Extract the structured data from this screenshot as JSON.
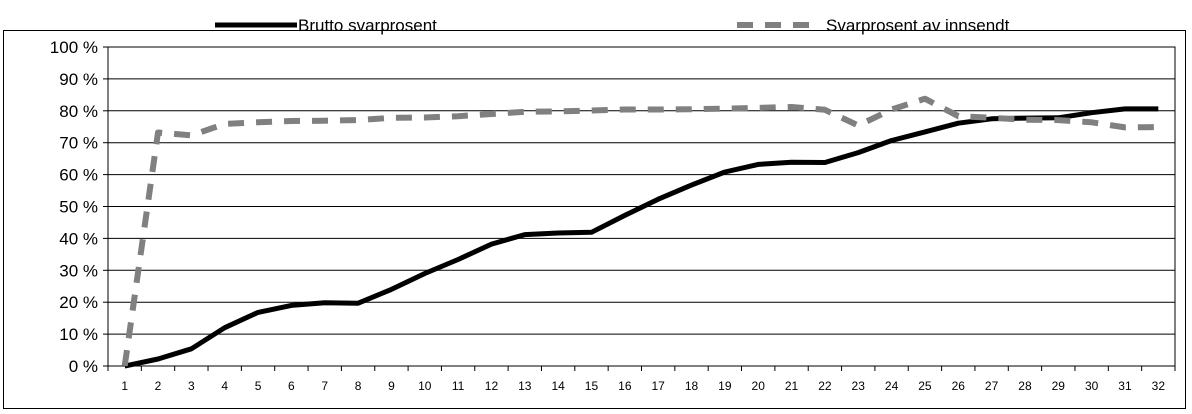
{
  "chart_data": {
    "type": "line",
    "x": [
      1,
      2,
      3,
      4,
      5,
      6,
      7,
      8,
      9,
      10,
      11,
      12,
      13,
      14,
      15,
      16,
      17,
      18,
      19,
      20,
      21,
      22,
      23,
      24,
      25,
      26,
      27,
      28,
      29,
      30,
      31,
      32
    ],
    "x_tick_labels": [
      "1",
      "2",
      "3",
      "4",
      "5",
      "6",
      "7",
      "8",
      "9",
      "10",
      "11",
      "12",
      "13",
      "14",
      "15",
      "16",
      "17",
      "18",
      "19",
      "20",
      "21",
      "22",
      "23",
      "24",
      "25",
      "26",
      "27",
      "28",
      "29",
      "30",
      "31",
      "32"
    ],
    "y_tick_labels": [
      "0 %",
      "10 %",
      "20 %",
      "30 %",
      "40 %",
      "50 %",
      "60 %",
      "70 %",
      "80 %",
      "90 %",
      "100 %"
    ],
    "ylim": [
      0,
      100
    ],
    "grid": true,
    "legend_position": "top",
    "series": [
      {
        "name": "Brutto svarprosent",
        "color": "#000000",
        "style": "solid",
        "values": [
          0,
          2.2,
          5.4,
          12,
          16.8,
          19,
          19.8,
          19.7,
          24,
          29,
          33.4,
          38.2,
          41.2,
          41.7,
          41.9,
          47.2,
          52.3,
          56.7,
          60.8,
          63.2,
          63.9,
          63.8,
          66.9,
          70.7,
          73.4,
          76.1,
          77.5,
          77.7,
          77.8,
          79.4,
          80.6,
          80.6
        ]
      },
      {
        "name": "Svarprosent av innsendt",
        "color": "#808080",
        "style": "dashed",
        "values": [
          0,
          73.2,
          72.3,
          75.9,
          76.4,
          76.8,
          76.9,
          77.1,
          77.8,
          77.9,
          78.3,
          79,
          79.7,
          79.8,
          80.1,
          80.4,
          80.4,
          80.5,
          80.7,
          80.9,
          81.2,
          80.3,
          75.4,
          80.4,
          83.8,
          78.3,
          77.8,
          77.2,
          77.1,
          76.4,
          74.8,
          74.9
        ]
      }
    ]
  }
}
